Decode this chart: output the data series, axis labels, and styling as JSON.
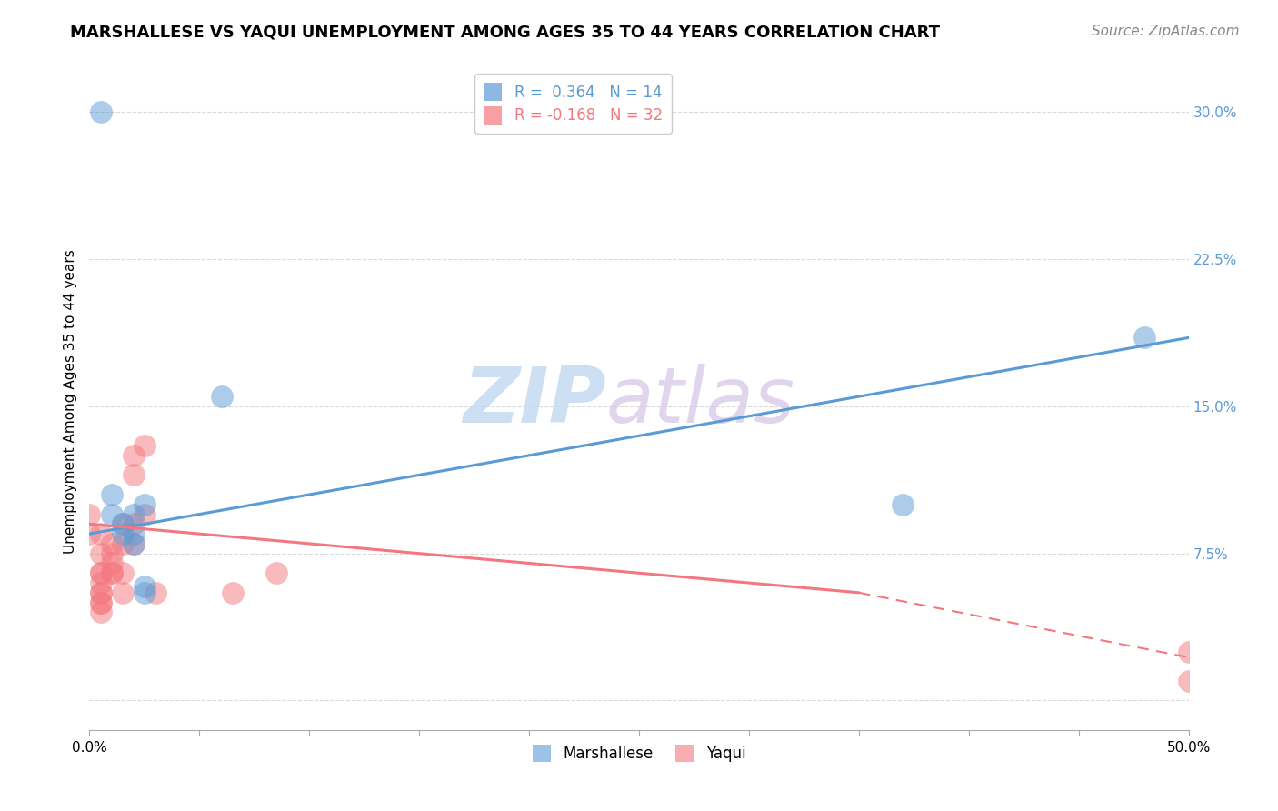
{
  "title": "MARSHALLESE VS YAQUI UNEMPLOYMENT AMONG AGES 35 TO 44 YEARS CORRELATION CHART",
  "source": "Source: ZipAtlas.com",
  "ylabel": "Unemployment Among Ages 35 to 44 years",
  "xlim": [
    0.0,
    0.5
  ],
  "ylim": [
    -0.015,
    0.32
  ],
  "xticks": [
    0.0,
    0.05,
    0.1,
    0.15,
    0.2,
    0.25,
    0.3,
    0.35,
    0.4,
    0.45,
    0.5
  ],
  "xticklabels_show": {
    "0.0": "0.0%",
    "0.5": "50.0%"
  },
  "yticks": [
    0.0,
    0.075,
    0.15,
    0.225,
    0.3
  ],
  "yticklabels": [
    "",
    "7.5%",
    "15.0%",
    "22.5%",
    "30.0%"
  ],
  "watermark_zip": "ZIP",
  "watermark_atlas": "atlas",
  "legend_entries": [
    {
      "label": "R =  0.364   N = 14",
      "color": "#5b9bd5"
    },
    {
      "label": "R = -0.168   N = 32",
      "color": "#f4777f"
    }
  ],
  "marshallese_color": "#5b9bd5",
  "yaqui_color": "#f4777f",
  "marshallese_points": [
    [
      0.005,
      0.3
    ],
    [
      0.01,
      0.095
    ],
    [
      0.01,
      0.105
    ],
    [
      0.015,
      0.09
    ],
    [
      0.015,
      0.085
    ],
    [
      0.02,
      0.095
    ],
    [
      0.02,
      0.085
    ],
    [
      0.02,
      0.08
    ],
    [
      0.025,
      0.1
    ],
    [
      0.025,
      0.055
    ],
    [
      0.025,
      0.058
    ],
    [
      0.06,
      0.155
    ],
    [
      0.37,
      0.1
    ],
    [
      0.48,
      0.185
    ]
  ],
  "yaqui_points": [
    [
      0.0,
      0.095
    ],
    [
      0.0,
      0.085
    ],
    [
      0.005,
      0.085
    ],
    [
      0.005,
      0.075
    ],
    [
      0.005,
      0.065
    ],
    [
      0.005,
      0.065
    ],
    [
      0.005,
      0.06
    ],
    [
      0.005,
      0.055
    ],
    [
      0.005,
      0.055
    ],
    [
      0.005,
      0.05
    ],
    [
      0.005,
      0.05
    ],
    [
      0.005,
      0.045
    ],
    [
      0.01,
      0.08
    ],
    [
      0.01,
      0.075
    ],
    [
      0.01,
      0.07
    ],
    [
      0.01,
      0.065
    ],
    [
      0.01,
      0.065
    ],
    [
      0.015,
      0.09
    ],
    [
      0.015,
      0.08
    ],
    [
      0.015,
      0.065
    ],
    [
      0.015,
      0.055
    ],
    [
      0.02,
      0.125
    ],
    [
      0.02,
      0.115
    ],
    [
      0.02,
      0.09
    ],
    [
      0.02,
      0.08
    ],
    [
      0.025,
      0.13
    ],
    [
      0.025,
      0.095
    ],
    [
      0.03,
      0.055
    ],
    [
      0.065,
      0.055
    ],
    [
      0.085,
      0.065
    ],
    [
      0.5,
      0.025
    ],
    [
      0.5,
      0.01
    ]
  ],
  "marshallese_line": [
    0.0,
    0.085,
    0.5,
    0.185
  ],
  "yaqui_line_solid": [
    0.0,
    0.09,
    0.35,
    0.055
  ],
  "yaqui_line_dashed": [
    0.35,
    0.055,
    0.5,
    0.022
  ],
  "background_color": "#ffffff",
  "grid_color": "#d9d9d9",
  "title_fontsize": 13,
  "axis_label_fontsize": 11,
  "tick_fontsize": 11,
  "legend_fontsize": 12,
  "source_fontsize": 11
}
